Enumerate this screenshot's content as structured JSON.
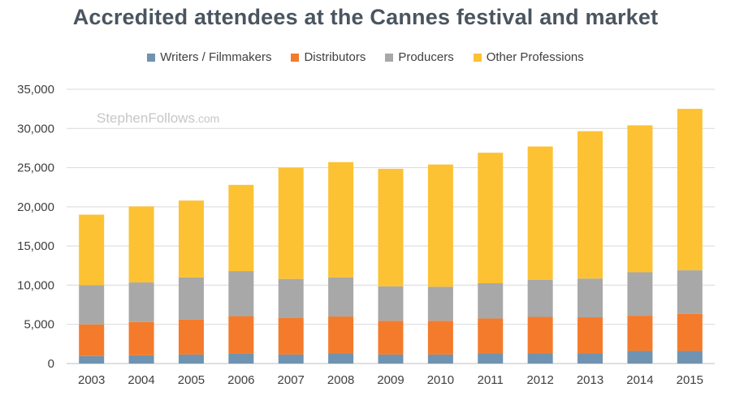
{
  "chart_data": {
    "type": "bar",
    "stacked": true,
    "title": "Accredited attendees at the Cannes festival and market",
    "watermark": "StephenFollows.com",
    "xlabel": "",
    "ylabel": "",
    "ylim": [
      0,
      35000
    ],
    "y_ticks": [
      "0",
      "5,000",
      "10,000",
      "15,000",
      "20,000",
      "25,000",
      "30,000",
      "35,000"
    ],
    "y_tick_values": [
      0,
      5000,
      10000,
      15000,
      20000,
      25000,
      30000,
      35000
    ],
    "grid": true,
    "legend_position": "top-center",
    "categories": [
      "2003",
      "2004",
      "2005",
      "2006",
      "2007",
      "2008",
      "2009",
      "2010",
      "2011",
      "2012",
      "2013",
      "2014",
      "2015"
    ],
    "series": [
      {
        "name": "Writers  / Filmmakers",
        "color": "#6f93b0",
        "values": [
          950,
          1050,
          1150,
          1250,
          1150,
          1300,
          1150,
          1150,
          1300,
          1300,
          1300,
          1600,
          1600
        ]
      },
      {
        "name": "Distributors",
        "color": "#f47b2b",
        "values": [
          4050,
          4250,
          4450,
          4800,
          4650,
          4700,
          4300,
          4300,
          4450,
          4650,
          4600,
          4500,
          4750
        ]
      },
      {
        "name": "Producers",
        "color": "#a8a8a8",
        "values": [
          5000,
          5050,
          5400,
          5750,
          5000,
          5000,
          4400,
          4350,
          4500,
          4750,
          4950,
          5550,
          5550
        ]
      },
      {
        "name": "Other Professions",
        "color": "#fcc233",
        "values": [
          9000,
          9700,
          9800,
          11000,
          14200,
          14700,
          15000,
          15600,
          16650,
          17000,
          18800,
          18750,
          20600
        ]
      }
    ]
  }
}
